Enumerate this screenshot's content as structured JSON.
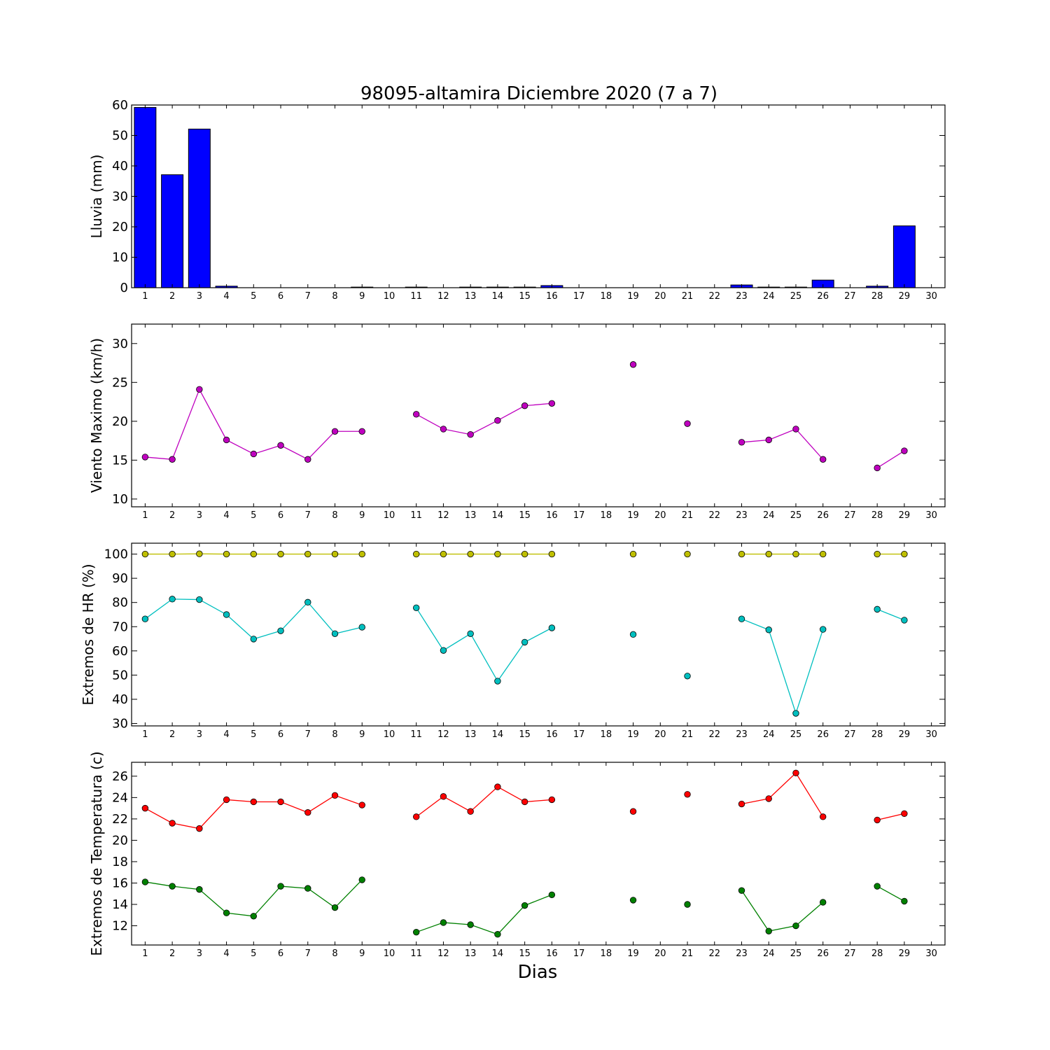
{
  "title": "98095-altamira Diciembre 2020  (7 a 7)",
  "xlabel": "Dias",
  "chart_data": [
    {
      "type": "bar",
      "ylabel": "Lluvia (mm)",
      "ylim": [
        0,
        60
      ],
      "yticks": [
        0,
        10,
        20,
        30,
        40,
        50,
        60
      ],
      "xlim": [
        0.5,
        30.5
      ],
      "xticks": [
        1,
        2,
        3,
        4,
        5,
        6,
        7,
        8,
        9,
        10,
        11,
        12,
        13,
        14,
        15,
        16,
        17,
        18,
        19,
        20,
        21,
        22,
        23,
        24,
        25,
        26,
        27,
        28,
        29,
        30
      ],
      "color": "#0000ff",
      "x": [
        1,
        2,
        3,
        4,
        5,
        6,
        7,
        8,
        9,
        10,
        11,
        12,
        13,
        14,
        15,
        16,
        17,
        18,
        19,
        20,
        21,
        22,
        23,
        24,
        25,
        26,
        27,
        28,
        29
      ],
      "values": [
        59.2,
        37.1,
        52.1,
        0.5,
        0,
        0,
        0,
        0,
        0.2,
        0,
        0.2,
        0,
        0.2,
        0.2,
        0.2,
        0.7,
        0,
        0,
        0,
        0,
        0,
        0,
        0.9,
        0.2,
        0.2,
        2.5,
        0,
        0.5,
        20.3
      ]
    },
    {
      "type": "line",
      "ylabel": "Viento Maximo (km/h)",
      "ylim": [
        9,
        32.5
      ],
      "yticks": [
        10,
        15,
        20,
        25,
        30
      ],
      "xlim": [
        0.5,
        30.5
      ],
      "xticks": [
        1,
        2,
        3,
        4,
        5,
        6,
        7,
        8,
        9,
        10,
        11,
        12,
        13,
        14,
        15,
        16,
        17,
        18,
        19,
        20,
        21,
        22,
        23,
        24,
        25,
        26,
        27,
        28,
        29,
        30
      ],
      "series": [
        {
          "color": "#bf00bf",
          "x": [
            1,
            2,
            3,
            4,
            5,
            6,
            7,
            8,
            9,
            10,
            11,
            12,
            13,
            14,
            15,
            16,
            17,
            18,
            19,
            20,
            21,
            22,
            23,
            24,
            25,
            26,
            27,
            28,
            29
          ],
          "values": [
            15.4,
            15.1,
            24.1,
            17.6,
            15.8,
            16.9,
            15.1,
            18.7,
            18.7,
            null,
            20.9,
            19.0,
            18.3,
            20.1,
            22.0,
            22.3,
            null,
            null,
            27.3,
            null,
            19.7,
            null,
            17.3,
            17.6,
            19.0,
            15.1,
            null,
            14.0,
            16.2
          ]
        }
      ]
    },
    {
      "type": "line",
      "ylabel": "Extremos de HR (%)",
      "ylim": [
        29,
        104.5
      ],
      "yticks": [
        30,
        40,
        50,
        60,
        70,
        80,
        90,
        100
      ],
      "xlim": [
        0.5,
        30.5
      ],
      "xticks": [
        1,
        2,
        3,
        4,
        5,
        6,
        7,
        8,
        9,
        10,
        11,
        12,
        13,
        14,
        15,
        16,
        17,
        18,
        19,
        20,
        21,
        22,
        23,
        24,
        25,
        26,
        27,
        28,
        29,
        30
      ],
      "series": [
        {
          "color": "#bfbf00",
          "x": [
            1,
            2,
            3,
            4,
            5,
            6,
            7,
            8,
            9,
            10,
            11,
            12,
            13,
            14,
            15,
            16,
            17,
            18,
            19,
            20,
            21,
            22,
            23,
            24,
            25,
            26,
            27,
            28,
            29
          ],
          "values": [
            100,
            100,
            100.1,
            100,
            100,
            100,
            100,
            100,
            100,
            null,
            100,
            100,
            100,
            100,
            100,
            100,
            null,
            null,
            100,
            null,
            100,
            null,
            100,
            100,
            100,
            100,
            null,
            100,
            100
          ]
        },
        {
          "color": "#00bfbf",
          "x": [
            1,
            2,
            3,
            4,
            5,
            6,
            7,
            8,
            9,
            10,
            11,
            12,
            13,
            14,
            15,
            16,
            17,
            18,
            19,
            20,
            21,
            22,
            23,
            24,
            25,
            26,
            27,
            28,
            29
          ],
          "values": [
            73.2,
            81.4,
            81.2,
            75.0,
            64.9,
            68.3,
            80.1,
            67.1,
            69.8,
            null,
            77.8,
            60.2,
            67.1,
            47.5,
            63.6,
            69.5,
            null,
            null,
            66.8,
            null,
            49.6,
            null,
            73.2,
            68.7,
            34.2,
            68.9,
            null,
            77.2,
            72.7
          ]
        }
      ]
    },
    {
      "type": "line",
      "ylabel": "Extremos de Temperatura (c)",
      "ylim": [
        10.2,
        27.3
      ],
      "yticks": [
        12,
        14,
        16,
        18,
        20,
        22,
        24,
        26
      ],
      "xlim": [
        0.5,
        30.5
      ],
      "xticks": [
        1,
        2,
        3,
        4,
        5,
        6,
        7,
        8,
        9,
        10,
        11,
        12,
        13,
        14,
        15,
        16,
        17,
        18,
        19,
        20,
        21,
        22,
        23,
        24,
        25,
        26,
        27,
        28,
        29,
        30
      ],
      "series": [
        {
          "color": "#ff0000",
          "x": [
            1,
            2,
            3,
            4,
            5,
            6,
            7,
            8,
            9,
            10,
            11,
            12,
            13,
            14,
            15,
            16,
            17,
            18,
            19,
            20,
            21,
            22,
            23,
            24,
            25,
            26,
            27,
            28,
            29
          ],
          "values": [
            23.0,
            21.6,
            21.1,
            23.8,
            23.6,
            23.6,
            22.6,
            24.2,
            23.3,
            null,
            22.2,
            24.1,
            22.7,
            25.0,
            23.6,
            23.8,
            null,
            null,
            22.7,
            null,
            24.3,
            null,
            23.4,
            23.9,
            26.3,
            22.2,
            null,
            21.9,
            22.5
          ]
        },
        {
          "color": "#008000",
          "x": [
            1,
            2,
            3,
            4,
            5,
            6,
            7,
            8,
            9,
            10,
            11,
            12,
            13,
            14,
            15,
            16,
            17,
            18,
            19,
            20,
            21,
            22,
            23,
            24,
            25,
            26,
            27,
            28,
            29
          ],
          "values": [
            16.1,
            15.7,
            15.4,
            13.2,
            12.9,
            15.7,
            15.5,
            13.7,
            16.3,
            null,
            11.4,
            12.3,
            12.1,
            11.2,
            13.9,
            14.9,
            null,
            null,
            14.4,
            null,
            14.0,
            null,
            15.3,
            11.5,
            12.0,
            14.2,
            null,
            15.7,
            14.3
          ]
        }
      ]
    }
  ]
}
